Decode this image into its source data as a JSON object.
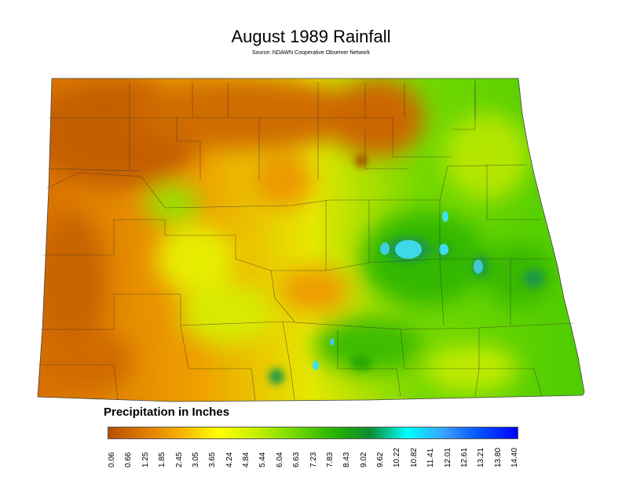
{
  "title": "August 1989 Rainfall",
  "subtitle": "Source: NDAWN Cooperative Observer Network",
  "legend": {
    "title": "Precipitation in Inches",
    "ticks": [
      "0.06",
      "0.66",
      "1.25",
      "1.85",
      "2.45",
      "3.05",
      "3.65",
      "4.24",
      "4.84",
      "5.44",
      "6.04",
      "6.63",
      "7.23",
      "7.83",
      "8.43",
      "9.02",
      "9.62",
      "10.22",
      "10.82",
      "11.41",
      "12.01",
      "12.61",
      "13.21",
      "13.80",
      "14.40"
    ],
    "colors": [
      "#b45000",
      "#e07b00",
      "#f5b400",
      "#ffff00",
      "#c8f000",
      "#78dc00",
      "#2ab400",
      "#0a8c32",
      "#00ffff",
      "#3aa0ff",
      "#0050ff",
      "#0000ff"
    ]
  }
}
